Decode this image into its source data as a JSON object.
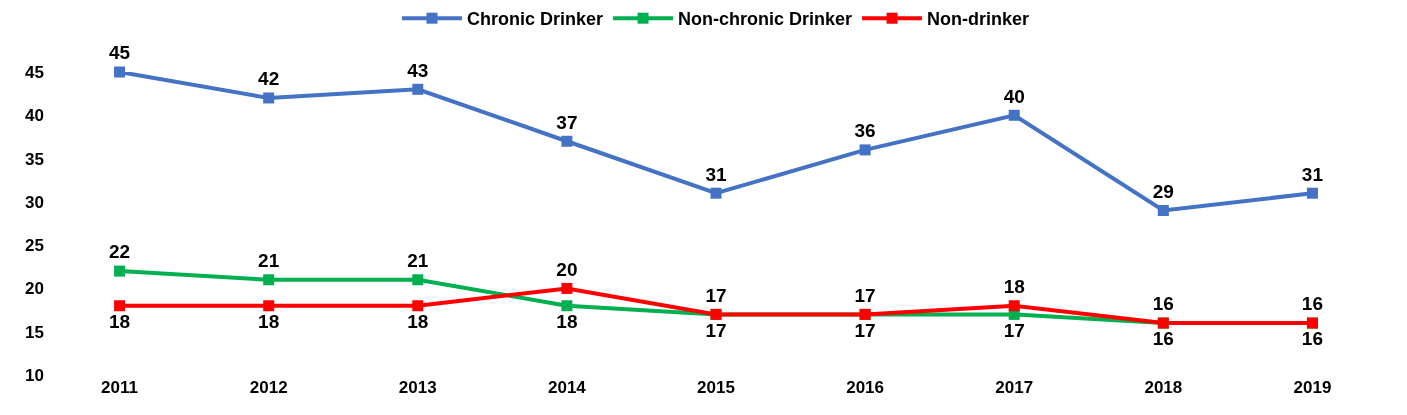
{
  "chart_data": {
    "type": "line",
    "categories": [
      "2011",
      "2012",
      "2013",
      "2014",
      "2015",
      "2016",
      "2017",
      "2018",
      "2019"
    ],
    "series": [
      {
        "name": "Chronic Drinker",
        "color": "#4472c4",
        "values": [
          45,
          42,
          43,
          37,
          31,
          36,
          40,
          29,
          31
        ]
      },
      {
        "name": "Non-chronic Drinker",
        "color": "#00b050",
        "values": [
          22,
          21,
          21,
          18,
          17,
          17,
          17,
          16,
          16
        ]
      },
      {
        "name": "Non-drinker",
        "color": "#ff0000",
        "values": [
          18,
          18,
          18,
          20,
          17,
          17,
          18,
          16,
          16
        ]
      }
    ],
    "ylim": [
      10,
      45
    ],
    "yticks": [
      10,
      15,
      20,
      25,
      30,
      35,
      40,
      45
    ],
    "grid": false,
    "legend": "top",
    "marker": "square",
    "line_style": "solid",
    "data_labels": true
  }
}
